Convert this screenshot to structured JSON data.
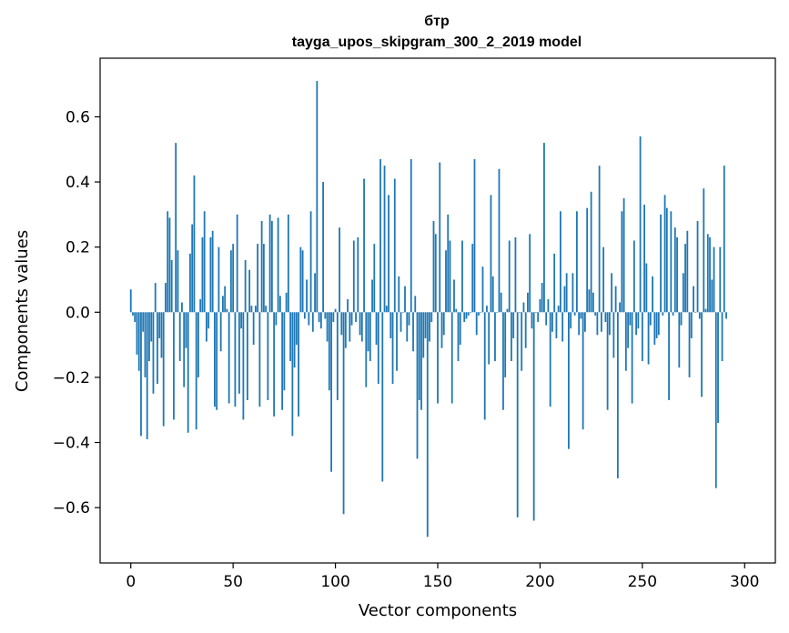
{
  "chart_data": {
    "type": "bar",
    "title": "бтр",
    "subtitle": "tayga_upos_skipgram_300_2_2019 model",
    "xlabel": "Vector components",
    "ylabel": "Components values",
    "xlim": [
      -15,
      315
    ],
    "ylim": [
      -0.77,
      0.78
    ],
    "xticks": [
      0,
      50,
      100,
      150,
      200,
      250,
      300
    ],
    "yticks": [
      -0.6,
      -0.4,
      -0.2,
      0.0,
      0.2,
      0.4,
      0.6
    ],
    "xtick_labels": [
      "0",
      "50",
      "100",
      "150",
      "200",
      "250",
      "300"
    ],
    "ytick_labels": [
      "−0.6",
      "−0.4",
      "−0.2",
      "0.0",
      "0.2",
      "0.4",
      "0.6"
    ],
    "grid": false,
    "bar_color": "#1f77b4",
    "series": [
      {
        "values": [
          0.07,
          -0.01,
          -0.03,
          -0.13,
          -0.18,
          -0.38,
          -0.06,
          -0.2,
          -0.39,
          -0.15,
          -0.09,
          -0.25,
          0.09,
          -0.22,
          -0.08,
          -0.14,
          -0.35,
          0.09,
          0.31,
          0.29,
          0.16,
          -0.33,
          0.52,
          0.19,
          -0.15,
          0.03,
          -0.23,
          -0.11,
          -0.37,
          0.18,
          0.27,
          0.42,
          -0.36,
          -0.2,
          0.04,
          0.23,
          0.31,
          -0.09,
          -0.05,
          0.23,
          0.25,
          -0.29,
          -0.3,
          0.2,
          -0.12,
          0.05,
          0.08,
          0.01,
          -0.28,
          0.19,
          0.21,
          -0.29,
          0.3,
          -0.25,
          -0.05,
          -0.33,
          0.16,
          -0.27,
          0.13,
          0.02,
          -0.1,
          0.02,
          0.21,
          -0.29,
          0.28,
          0.21,
          0.02,
          -0.27,
          0.3,
          0.28,
          -0.32,
          -0.04,
          0.29,
          0.05,
          -0.3,
          -0.24,
          0.06,
          0.3,
          -0.15,
          -0.38,
          -0.17,
          -0.1,
          -0.32,
          0.2,
          0.19,
          -0.02,
          0.1,
          -0.04,
          0.31,
          -0.06,
          0.12,
          0.71,
          -0.03,
          -0.05,
          0.4,
          -0.02,
          -0.09,
          -0.24,
          -0.49,
          -0.03,
          0.01,
          -0.27,
          0.26,
          -0.07,
          -0.62,
          -0.11,
          0.04,
          -0.09,
          -0.04,
          0.22,
          -0.03,
          0.23,
          -0.07,
          -0.09,
          0.41,
          -0.23,
          -0.12,
          -0.15,
          0.1,
          0.21,
          -0.1,
          -0.22,
          0.47,
          -0.52,
          0.45,
          0.02,
          0.36,
          -0.08,
          -0.22,
          0.41,
          -0.18,
          0.11,
          -0.06,
          0.0,
          0.08,
          -0.09,
          -0.04,
          0.47,
          -0.12,
          0.05,
          -0.45,
          -0.27,
          -0.3,
          -0.14,
          -0.08,
          -0.69,
          -0.09,
          -0.03,
          0.28,
          0.24,
          -0.28,
          0.46,
          -0.11,
          -0.07,
          0.19,
          0.3,
          0.22,
          -0.28,
          0.1,
          0.01,
          -0.15,
          -0.1,
          0.22,
          -0.03,
          -0.02,
          -0.01,
          0.0,
          0.21,
          0.47,
          -0.07,
          -0.01,
          0.0,
          0.14,
          -0.33,
          0.02,
          -0.16,
          0.36,
          0.11,
          -0.15,
          0.0,
          0.44,
          0.06,
          -0.3,
          -0.2,
          0.01,
          0.22,
          -0.15,
          -0.08,
          0.23,
          -0.63,
          0.0,
          -0.18,
          0.03,
          -0.11,
          0.06,
          0.24,
          -0.05,
          -0.64,
          0.0,
          -0.03,
          0.04,
          0.09,
          0.52,
          -0.04,
          0.04,
          -0.29,
          -0.06,
          0.18,
          -0.08,
          0.02,
          0.31,
          -0.09,
          0.08,
          0.12,
          -0.42,
          -0.05,
          0.12,
          -0.01,
          0.31,
          -0.07,
          -0.02,
          -0.36,
          -0.06,
          0.32,
          0.07,
          0.37,
          0.06,
          -0.01,
          -0.07,
          0.45,
          -0.06,
          0.2,
          -0.03,
          -0.3,
          -0.07,
          0.12,
          -0.14,
          0.08,
          -0.51,
          0.03,
          0.31,
          0.35,
          -0.18,
          -0.11,
          -0.04,
          -0.28,
          0.22,
          -0.07,
          -0.05,
          0.54,
          -0.15,
          0.33,
          0.15,
          -0.16,
          -0.04,
          0.11,
          -0.1,
          -0.08,
          -0.07,
          0.3,
          -0.01,
          0.36,
          0.32,
          -0.27,
          0.31,
          -0.01,
          0.26,
          0.23,
          -0.17,
          -0.04,
          0.12,
          0.21,
          0.25,
          -0.2,
          -0.08,
          0.08,
          0.0,
          0.28,
          -0.02,
          -0.26,
          0.38,
          0.01,
          0.24,
          0.23,
          0.1,
          0.2,
          -0.54,
          -0.34,
          0.2,
          -0.15,
          0.45,
          -0.02
        ]
      }
    ]
  }
}
